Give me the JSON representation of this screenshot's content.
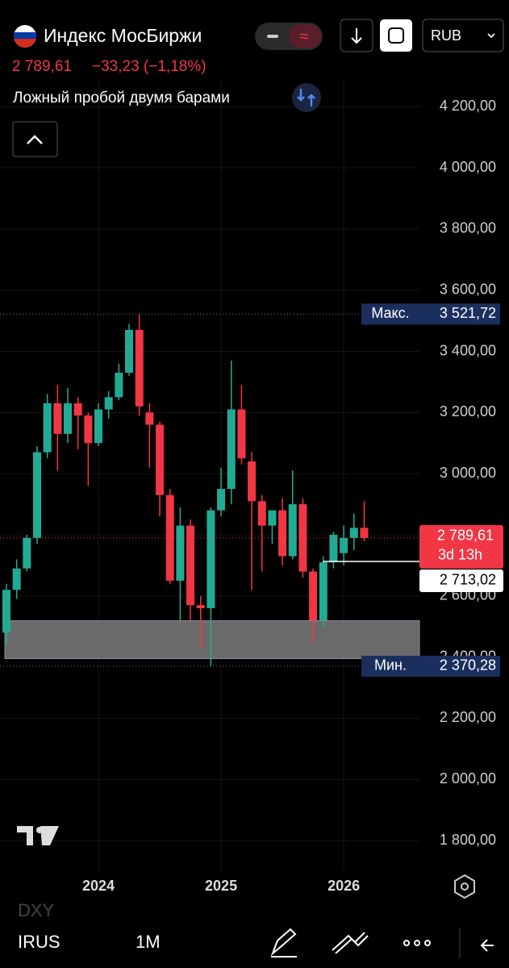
{
  "header": {
    "title": "Индекс МосБиржи",
    "price": "2 789,61",
    "change": "−33,23 (−1,18%)",
    "indicator": "Ложный пробой двумя барами",
    "currency": "RUB"
  },
  "chart_data": {
    "type": "candlestick",
    "categories": [
      null,
      null,
      null,
      null,
      null,
      null,
      null,
      null,
      null,
      "2024",
      null,
      null,
      null,
      null,
      null,
      null,
      null,
      null,
      null,
      null,
      null,
      "2025",
      null,
      null,
      null,
      null,
      null,
      null,
      null,
      null,
      null,
      null,
      null,
      "2026",
      null,
      null
    ],
    "open": [
      2480,
      2620,
      2690,
      2790,
      3070,
      3230,
      3130,
      3230,
      3190,
      3100,
      3210,
      3250,
      3330,
      3470,
      3200,
      3160,
      2930,
      2650,
      2830,
      2570,
      2560,
      2880,
      2950,
      3210,
      3040,
      2910,
      2830,
      2880,
      2730,
      2900,
      2680,
      2520,
      2710,
      2740,
      2790,
      2822.84
    ],
    "high": [
      2640,
      2720,
      2800,
      3090,
      3260,
      3290,
      3280,
      3250,
      3200,
      3230,
      3270,
      3360,
      3490,
      3521.72,
      3230,
      3170,
      2950,
      2890,
      2850,
      2600,
      2890,
      3020,
      3370,
      3290,
      3070,
      2930,
      2880,
      2920,
      3010,
      2920,
      2690,
      2730,
      2810,
      2830,
      2870,
      2910
    ],
    "low": [
      2440,
      2590,
      2680,
      2770,
      3050,
      3010,
      3100,
      3080,
      2960,
      3090,
      3180,
      3240,
      3320,
      3190,
      3020,
      2860,
      2640,
      2520,
      2520,
      2430,
      2370.28,
      2860,
      2900,
      3030,
      2620,
      2680,
      2770,
      2700,
      2720,
      2660,
      2450,
      2500,
      2690,
      2700,
      2750,
      2780
    ],
    "close": [
      2620,
      2690,
      2790,
      3070,
      3230,
      3130,
      3230,
      3190,
      3100,
      3210,
      3250,
      3330,
      3470,
      3220,
      3160,
      2930,
      2650,
      2830,
      2570,
      2560,
      2880,
      2950,
      3210,
      3050,
      2910,
      2830,
      2880,
      2730,
      2900,
      2680,
      2520,
      2710,
      2800,
      2790,
      2822.84,
      2789.61
    ],
    "up_color": "#22ab94",
    "down_color": "#f23645",
    "ylim": [
      1700,
      4285
    ],
    "yticks": [
      {
        "value": 1800,
        "label": "1 800,00"
      },
      {
        "value": 2000,
        "label": "2 000,00"
      },
      {
        "value": 2200,
        "label": "2 200,00"
      },
      {
        "value": 2400,
        "label": "2 400,00"
      },
      {
        "value": 2600,
        "label": "2 600,00"
      },
      {
        "value": 2800,
        "label": "2 800,00"
      },
      {
        "value": 3000,
        "label": "3 000,00"
      },
      {
        "value": 3200,
        "label": "3 200,00"
      },
      {
        "value": 3400,
        "label": "3 400,00"
      },
      {
        "value": 3600,
        "label": "3 600,00"
      },
      {
        "value": 3800,
        "label": "3 800,00"
      },
      {
        "value": 4000,
        "label": "4 000,00"
      },
      {
        "value": 4200,
        "label": "4 200,00"
      }
    ],
    "max_marker": {
      "name": "Макс.",
      "value": 3521.72,
      "label": "3 521,72"
    },
    "min_marker": {
      "name": "Мин.",
      "value": 2370.28,
      "label": "2 370,28"
    },
    "last_price": {
      "value": 2789.61,
      "label": "2 789,61",
      "countdown": "3d 13h"
    },
    "level": {
      "value": 2713.02,
      "label": "2 713,02"
    },
    "zone": {
      "from": 2395,
      "to": 2519
    }
  },
  "footer": {
    "overlay": "DXY",
    "symbol": "IRUS",
    "interval": "1M"
  }
}
